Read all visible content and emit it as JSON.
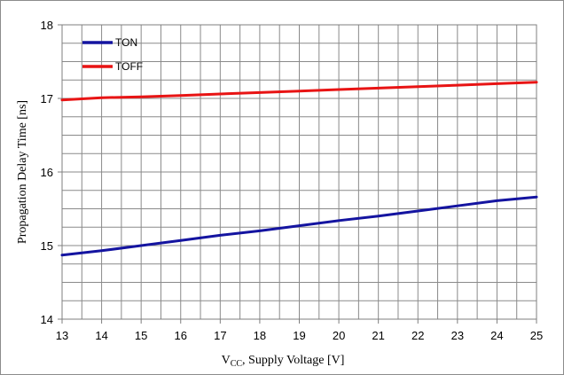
{
  "chart_data": {
    "type": "line",
    "title": "",
    "xlabel_main": "V",
    "xlabel_sub": "CC",
    "xlabel_rest": ", Supply Voltage [V]",
    "ylabel": "Propagation Delay Time  [ns]",
    "xlim": [
      13,
      25
    ],
    "ylim": [
      14,
      18
    ],
    "x_ticks": [
      "13",
      "14",
      "15",
      "16",
      "17",
      "18",
      "19",
      "20",
      "21",
      "22",
      "23",
      "24",
      "25"
    ],
    "y_ticks": [
      "14",
      "15",
      "16",
      "17",
      "18"
    ],
    "grid": true,
    "legend_position": "top-left",
    "x": [
      13,
      14,
      15,
      16,
      17,
      18,
      19,
      20,
      21,
      22,
      23,
      24,
      25
    ],
    "series": [
      {
        "name": "TON",
        "color": "#1414a0",
        "values": [
          14.87,
          14.93,
          15.0,
          15.07,
          15.14,
          15.2,
          15.27,
          15.34,
          15.4,
          15.47,
          15.54,
          15.61,
          15.66
        ]
      },
      {
        "name": "TOFF",
        "color": "#e81414",
        "values": [
          16.98,
          17.01,
          17.02,
          17.04,
          17.06,
          17.08,
          17.1,
          17.12,
          17.14,
          17.16,
          17.18,
          17.2,
          17.22
        ]
      }
    ]
  }
}
